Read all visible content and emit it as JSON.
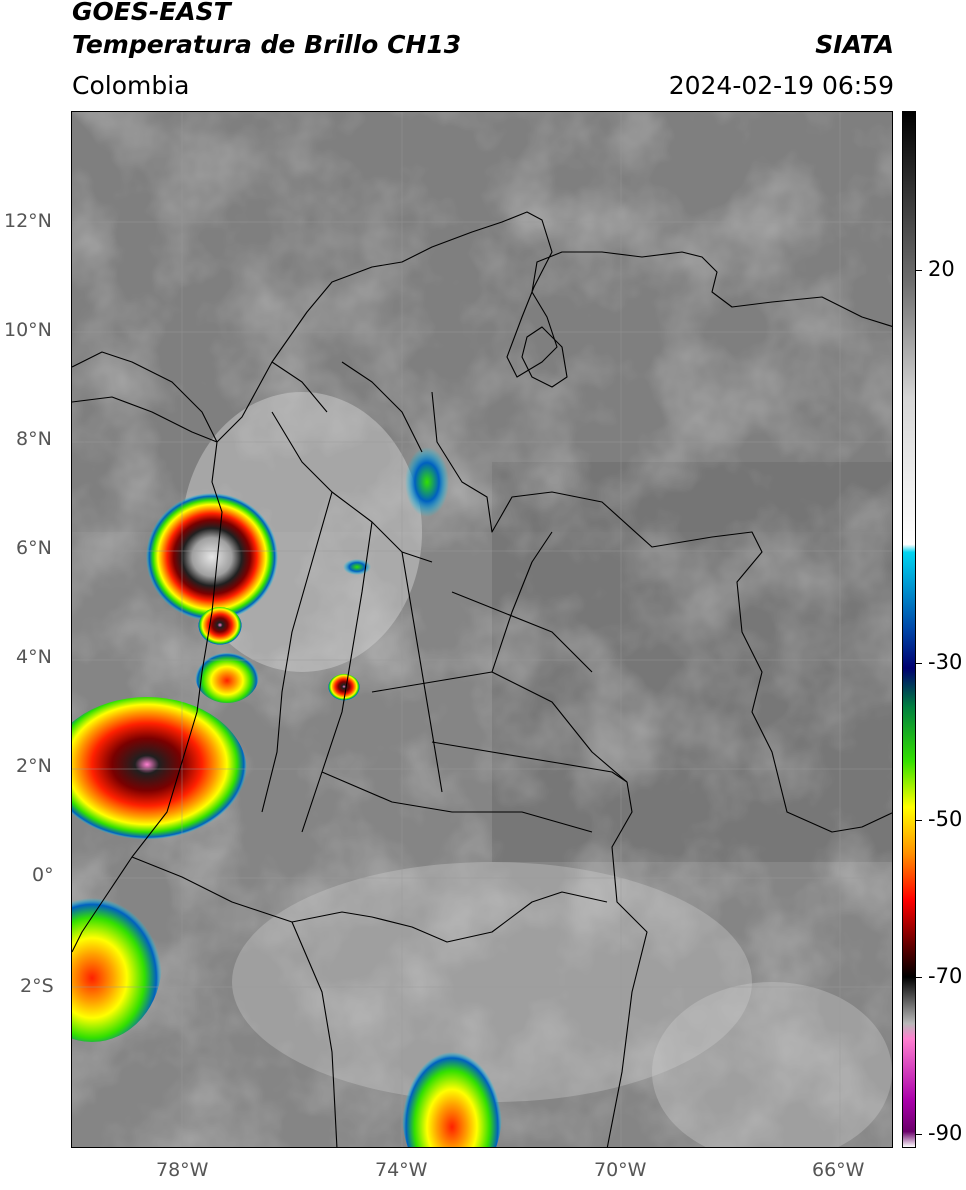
{
  "header": {
    "line1": "GOES-EAST",
    "line2": "Temperatura de Brillo CH13",
    "region": "Colombia",
    "org": "SIATA",
    "datetime": "2024-02-19 06:59"
  },
  "axes": {
    "lat_labels": [
      "12°N",
      "10°N",
      "8°N",
      "6°N",
      "4°N",
      "2°N",
      "0°",
      "2°S"
    ],
    "lon_labels": [
      "78°W",
      "74°W",
      "70°W",
      "66°W"
    ]
  },
  "colorbar": {
    "labels": [
      "20",
      "-30",
      "-50",
      "-70",
      "-90"
    ],
    "range": [
      -92,
      42
    ],
    "stops": [
      {
        "t": 42,
        "c": "#000000"
      },
      {
        "t": 20,
        "c": "#6e6e6e"
      },
      {
        "t": 5,
        "c": "#d6d6d6"
      },
      {
        "t": -14,
        "c": "#ffffff"
      },
      {
        "t": -15,
        "c": "#00d4f0"
      },
      {
        "t": -25,
        "c": "#0046a8"
      },
      {
        "t": -30,
        "c": "#000070"
      },
      {
        "t": -35,
        "c": "#008040"
      },
      {
        "t": -42,
        "c": "#33e000"
      },
      {
        "t": -48,
        "c": "#ffff00"
      },
      {
        "t": -54,
        "c": "#ff9000"
      },
      {
        "t": -60,
        "c": "#ff0000"
      },
      {
        "t": -66,
        "c": "#600000"
      },
      {
        "t": -70,
        "c": "#000000"
      },
      {
        "t": -76,
        "c": "#b8b8b8"
      },
      {
        "t": -78,
        "c": "#ff80d0"
      },
      {
        "t": -86,
        "c": "#aa00aa"
      },
      {
        "t": -90,
        "c": "#6a006a"
      },
      {
        "t": -92,
        "c": "#ffffff"
      }
    ]
  }
}
